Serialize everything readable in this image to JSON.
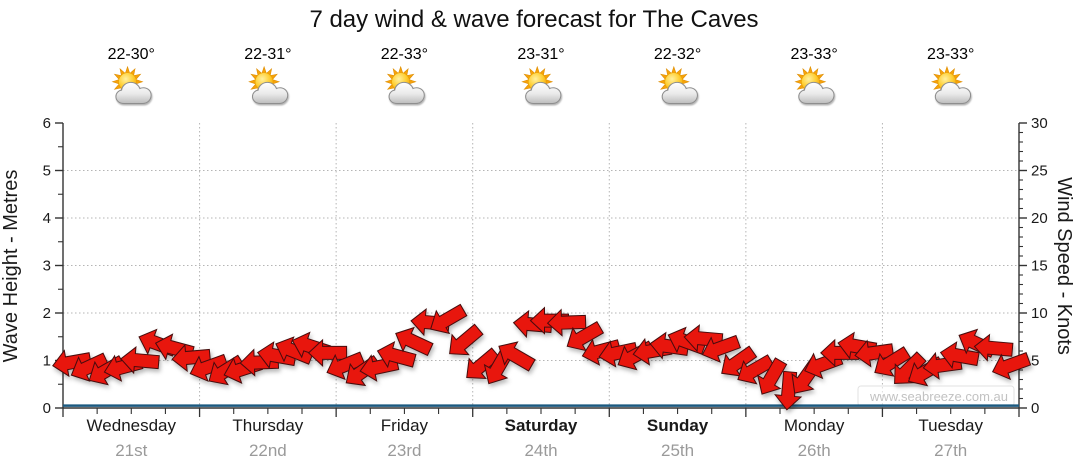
{
  "title": "7 day wind & wave forecast for The Caves",
  "watermark": "www.seabreeze.com.au",
  "axes": {
    "left_label": "Wave Height - Metres",
    "right_label": "Wind Speed - Knots",
    "left_ticks": [
      0,
      1,
      2,
      3,
      4,
      5,
      6
    ],
    "right_ticks": [
      0,
      5,
      10,
      15,
      20,
      25,
      30
    ]
  },
  "days": [
    {
      "name": "Wednesday",
      "date": "21st",
      "temps": "22-30°",
      "weekend": false,
      "icon": "partly-cloudy-icon"
    },
    {
      "name": "Thursday",
      "date": "22nd",
      "temps": "22-31°",
      "weekend": false,
      "icon": "partly-cloudy-icon"
    },
    {
      "name": "Friday",
      "date": "23rd",
      "temps": "22-33°",
      "weekend": false,
      "icon": "partly-cloudy-icon"
    },
    {
      "name": "Saturday",
      "date": "24th",
      "temps": "23-31°",
      "weekend": true,
      "icon": "partly-cloudy-icon"
    },
    {
      "name": "Sunday",
      "date": "25th",
      "temps": "22-32°",
      "weekend": true,
      "icon": "partly-cloudy-icon"
    },
    {
      "name": "Monday",
      "date": "26th",
      "temps": "23-33°",
      "weekend": false,
      "icon": "partly-cloudy-icon"
    },
    {
      "name": "Tuesday",
      "date": "27th",
      "temps": "23-33°",
      "weekend": false,
      "icon": "partly-cloudy-icon"
    }
  ],
  "chart_data": {
    "type": "wind-arrow-timeseries",
    "title": "7 day wind & wave forecast for The Caves",
    "ylabel_left": "Wave Height - Metres",
    "ylabel_right": "Wind Speed - Knots",
    "ylim_left": [
      0,
      6
    ],
    "ylim_right": [
      0,
      30
    ],
    "grid": "dotted horizontal lines at integer wave heights, dotted vertical lines at day boundaries",
    "x_hours_step": 3,
    "wind_speed_knots": [
      4.8,
      4.3,
      3.9,
      4.3,
      5.0,
      6.8,
      6.3,
      5.3,
      4.3,
      3.9,
      4.1,
      4.8,
      5.5,
      6.0,
      6.5,
      5.8,
      4.5,
      3.8,
      4.3,
      5.5,
      7.0,
      9.0,
      9.3,
      7.0,
      4.5,
      4.3,
      5.5,
      8.8,
      9.2,
      9.0,
      7.5,
      6.0,
      5.8,
      5.5,
      6.0,
      6.5,
      7.0,
      7.3,
      6.3,
      4.8,
      4.0,
      3.2,
      1.8,
      3.2,
      4.6,
      5.8,
      6.5,
      5.8,
      4.8,
      4.0,
      3.8,
      4.5,
      5.5,
      6.8,
      6.3,
      4.5
    ],
    "wind_direction_deg_screen_cw_from_east": [
      170,
      155,
      150,
      165,
      185,
      200,
      195,
      175,
      160,
      148,
      162,
      178,
      190,
      202,
      198,
      180,
      158,
      145,
      168,
      195,
      205,
      185,
      150,
      140,
      140,
      120,
      210,
      185,
      180,
      178,
      150,
      165,
      168,
      152,
      170,
      188,
      200,
      185,
      160,
      145,
      150,
      120,
      95,
      125,
      160,
      180,
      190,
      172,
      148,
      135,
      150,
      172,
      190,
      205,
      185,
      160
    ],
    "wave_height_m": 0.05
  },
  "colors": {
    "arrow_fill": "#e8120e",
    "arrow_outline": "#45100b",
    "wave_line": "#1c5a80",
    "grid": "#b5b5b5",
    "axis": "#333333",
    "day_name": "#1a1a1a",
    "day_date": "#9a9a9a",
    "temps": "#000000"
  }
}
